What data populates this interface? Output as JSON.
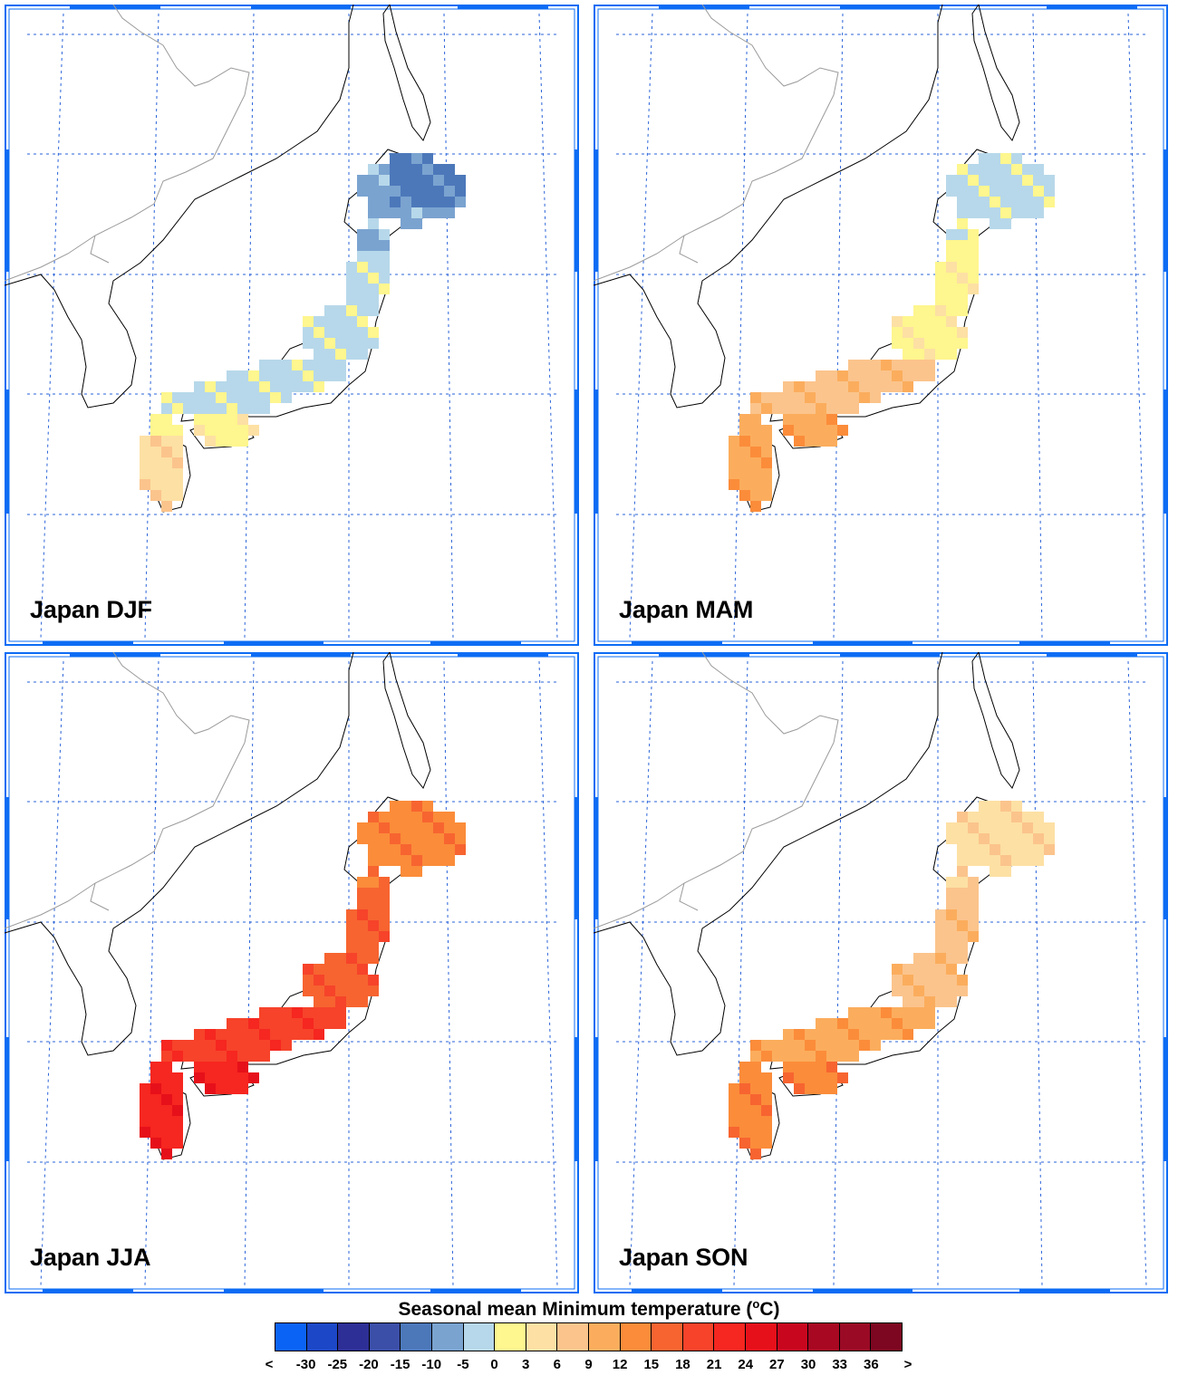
{
  "panels": [
    {
      "label": "Japan DJF",
      "season": "DJF",
      "mean_color": "#b7d8ea"
    },
    {
      "label": "Japan MAM",
      "season": "MAM",
      "mean_color": "#fef08c"
    },
    {
      "label": "Japan JJA",
      "season": "JJA",
      "mean_color": "#f64d26"
    },
    {
      "label": "Japan SON",
      "season": "SON",
      "mean_color": "#fcae6b"
    }
  ],
  "legend": {
    "title": "Seasonal mean Minimum temperature (",
    "title_sup": "o",
    "title_suffix": "C)",
    "labels": [
      "<",
      "-30",
      "-25",
      "-20",
      "-15",
      "-10",
      "-5",
      "0",
      "3",
      "6",
      "9",
      "12",
      "15",
      "18",
      "21",
      "24",
      "27",
      "30",
      "33",
      "36",
      ">"
    ],
    "colors": [
      "#0b63f6",
      "#1c48c7",
      "#2e2f96",
      "#3b4fa8",
      "#4c78ba",
      "#7aa3d0",
      "#b7d8ea",
      "#fef68e",
      "#fde0a4",
      "#fbc48c",
      "#fbad5d",
      "#fb8c3a",
      "#f76430",
      "#f6432a",
      "#f62620",
      "#e6101a",
      "#c8071f",
      "#a80822",
      "#9a0a25",
      "#7d0620"
    ]
  },
  "style": {
    "frame_color": "#0d6cf4",
    "grid_color": "#2a63d8",
    "coast_color": "#000000",
    "border_color": "#9a9a9a"
  }
}
